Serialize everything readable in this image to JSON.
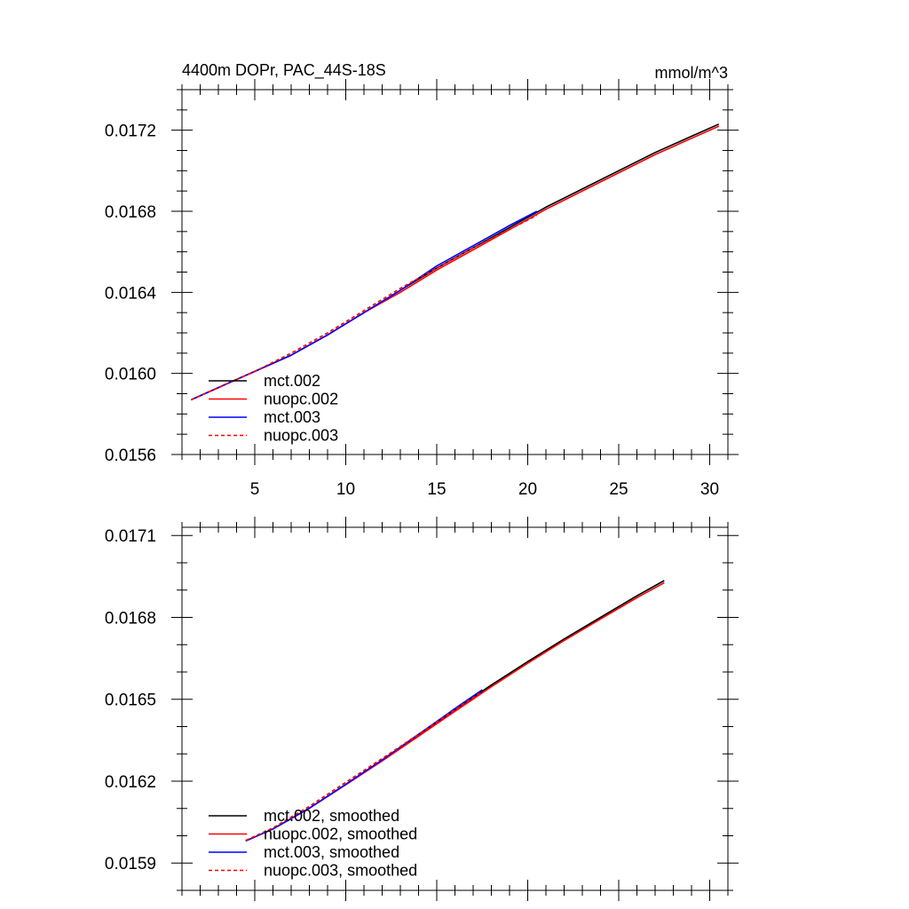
{
  "figure": {
    "title_left": "4400m DOPr, PAC_44S-18S",
    "title_right": "mmol/m^3"
  },
  "chart_data": [
    {
      "type": "line",
      "xlim": [
        1.0,
        31.0
      ],
      "ylim": [
        0.0156,
        0.0174
      ],
      "x_ticks": [
        5,
        10,
        15,
        20,
        25,
        30
      ],
      "x_tick_labels": [
        "5",
        "10",
        "15",
        "20",
        "25",
        "30"
      ],
      "y_ticks": [
        0.0156,
        0.016,
        0.0164,
        0.0168,
        0.0172
      ],
      "y_tick_labels": [
        "0.0156",
        "0.0160",
        "0.0164",
        "0.0168",
        "0.0172"
      ],
      "x_minor_step": 1,
      "y_minor_step": 0.0001,
      "grid": false,
      "legend_position": "bottom-left",
      "series": [
        {
          "name": "mct.002",
          "color": "#000000",
          "dash": "solid",
          "x": [
            1.5,
            3,
            5,
            7,
            9,
            11,
            13,
            15,
            17,
            19,
            21,
            23,
            25,
            27,
            29,
            30.5
          ],
          "y": [
            0.01587,
            0.01593,
            0.01601,
            0.01609,
            0.01619,
            0.0163,
            0.01641,
            0.01652,
            0.01662,
            0.01672,
            0.01682,
            0.01691,
            0.017,
            0.01709,
            0.01717,
            0.01723
          ]
        },
        {
          "name": "nuopc.002",
          "color": "#ff0000",
          "dash": "solid",
          "x": [
            1.5,
            3,
            5,
            7,
            9,
            11,
            13,
            15,
            17,
            19,
            21,
            23,
            25,
            27,
            29,
            30.5
          ],
          "y": [
            0.01587,
            0.01593,
            0.01601,
            0.01609,
            0.01619,
            0.0163,
            0.0164,
            0.01651,
            0.01661,
            0.01671,
            0.01681,
            0.0169,
            0.01699,
            0.01708,
            0.01716,
            0.01722
          ]
        },
        {
          "name": "mct.003",
          "color": "#0000ff",
          "dash": "solid",
          "x": [
            1.5,
            3,
            5,
            7,
            9,
            11,
            13,
            15,
            17,
            19,
            20.5
          ],
          "y": [
            0.01587,
            0.01593,
            0.01601,
            0.01609,
            0.01619,
            0.0163,
            0.01641,
            0.01653,
            0.01663,
            0.01673,
            0.0168
          ]
        },
        {
          "name": "nuopc.003",
          "color": "#ff0000",
          "dash": "dashed",
          "x": [
            1.5,
            3,
            5,
            7,
            9,
            11,
            13,
            15,
            17,
            19,
            20.5
          ],
          "y": [
            0.01587,
            0.01593,
            0.01601,
            0.0161,
            0.0162,
            0.01631,
            0.01642,
            0.01652,
            0.01662,
            0.01671,
            0.01678
          ]
        }
      ]
    },
    {
      "type": "line",
      "xlim": [
        1.0,
        31.0
      ],
      "ylim": [
        0.0158,
        0.01713
      ],
      "x_ticks": [
        5,
        10,
        15,
        20,
        25,
        30
      ],
      "x_tick_labels": [
        "",
        "",
        "",
        "",
        "",
        ""
      ],
      "y_ticks": [
        0.0159,
        0.0162,
        0.0165,
        0.0168,
        0.0171
      ],
      "y_tick_labels": [
        "0.0159",
        "0.0162",
        "0.0165",
        "0.0168",
        "0.0171"
      ],
      "x_minor_step": 1,
      "y_minor_step": 0.0001,
      "grid": false,
      "legend_position": "bottom-left",
      "series": [
        {
          "name": "mct.002, smoothed",
          "color": "#000000",
          "dash": "solid",
          "x": [
            4.5,
            6,
            8,
            10,
            12,
            14,
            16,
            18,
            20,
            22,
            24,
            26,
            27.5
          ],
          "y": [
            0.015981,
            0.016025,
            0.016101,
            0.016187,
            0.016275,
            0.016368,
            0.016462,
            0.016552,
            0.016638,
            0.016721,
            0.0168,
            0.016879,
            0.016935
          ]
        },
        {
          "name": "nuopc.002, smoothed",
          "color": "#ff0000",
          "dash": "solid",
          "x": [
            4.5,
            6,
            8,
            10,
            12,
            14,
            16,
            18,
            20,
            22,
            24,
            26,
            27.5
          ],
          "y": [
            0.015981,
            0.016025,
            0.016101,
            0.016187,
            0.016274,
            0.016365,
            0.016456,
            0.016546,
            0.016632,
            0.016715,
            0.016794,
            0.016872,
            0.016927
          ]
        },
        {
          "name": "mct.003, smoothed",
          "color": "#0000ff",
          "dash": "solid",
          "x": [
            4.5,
            6,
            8,
            10,
            12,
            14,
            16,
            17.5
          ],
          "y": [
            0.015981,
            0.016025,
            0.016101,
            0.016189,
            0.016278,
            0.016372,
            0.016466,
            0.016535
          ]
        },
        {
          "name": "nuopc.003, smoothed",
          "color": "#ff0000",
          "dash": "dashed",
          "x": [
            4.5,
            6,
            8,
            10,
            12,
            14,
            16,
            17.5
          ],
          "y": [
            0.015983,
            0.016029,
            0.016108,
            0.016196,
            0.016283,
            0.016372,
            0.016462,
            0.016529
          ]
        }
      ]
    }
  ]
}
